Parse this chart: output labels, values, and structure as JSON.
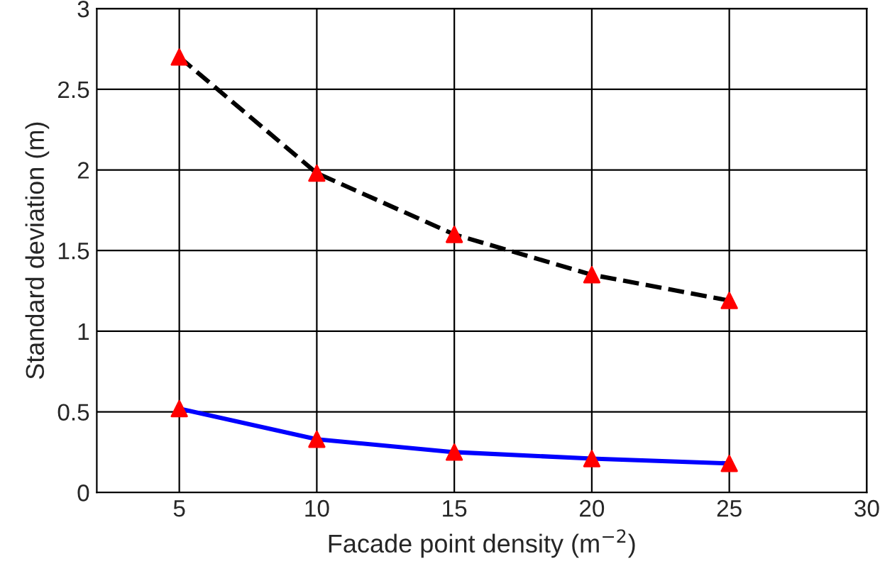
{
  "chart_data": {
    "type": "line",
    "xlabel": "Facade point density (m$^{−2}$)",
    "ylabel": "Standard deviation (m)",
    "x": [
      5,
      10,
      15,
      20,
      25
    ],
    "series": [
      {
        "color": "#000000",
        "line_style": "dashed",
        "marker": "none",
        "values": [
          2.7,
          1.98,
          1.6,
          1.35,
          1.19
        ]
      },
      {
        "color": "#0000ff",
        "line_style": "solid",
        "marker": "none",
        "values": [
          0.52,
          0.33,
          0.25,
          0.21,
          0.18
        ]
      },
      {
        "type": "scatter",
        "color": "#ff0000",
        "marker": "triangle",
        "values": [
          2.7,
          1.98,
          1.6,
          1.35,
          1.19
        ]
      },
      {
        "type": "scatter",
        "color": "#ff0000",
        "marker": "triangle",
        "values": [
          0.52,
          0.33,
          0.25,
          0.21,
          0.18
        ]
      }
    ],
    "xlim": [
      2,
      30
    ],
    "xticks": [
      5,
      10,
      15,
      20,
      25,
      30
    ],
    "ylim": [
      0,
      3
    ],
    "yticks": [
      0,
      0.5,
      1,
      1.5,
      2,
      2.5,
      3
    ],
    "grid": true,
    "legend": false
  }
}
